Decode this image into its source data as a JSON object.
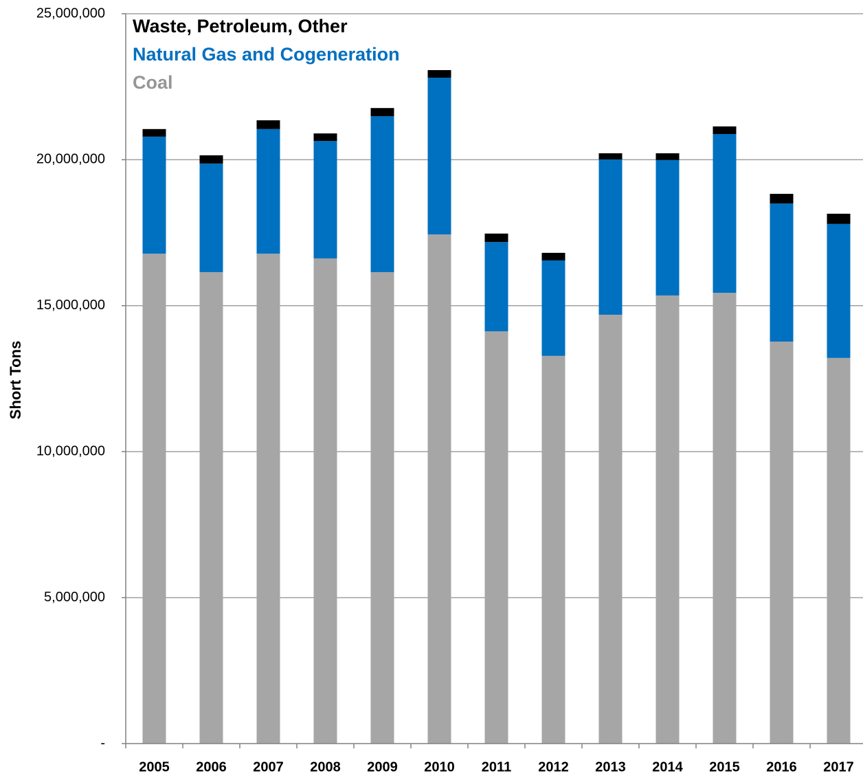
{
  "chart_data": {
    "type": "stacked_bar",
    "y_label": "Short Tons",
    "categories": [
      "2005",
      "2006",
      "2007",
      "2008",
      "2009",
      "2010",
      "2011",
      "2012",
      "2013",
      "2014",
      "2015",
      "2016",
      "2017"
    ],
    "series": [
      {
        "name": "Coal",
        "color": "#a6a6a6",
        "values": [
          16780000,
          16150000,
          16780000,
          16620000,
          16150000,
          17440000,
          14120000,
          13280000,
          14690000,
          15350000,
          15440000,
          13770000,
          13210000
        ]
      },
      {
        "name": "Natural Gas and Cogeneration",
        "color": "#0070c0",
        "values": [
          4010000,
          3720000,
          4270000,
          4020000,
          5340000,
          5370000,
          3060000,
          3270000,
          5320000,
          4640000,
          5440000,
          4730000,
          4590000
        ]
      },
      {
        "name": "Waste, Petroleum, Other",
        "color": "#000000",
        "values": [
          260000,
          280000,
          300000,
          260000,
          280000,
          260000,
          290000,
          260000,
          210000,
          230000,
          260000,
          330000,
          350000
        ]
      }
    ],
    "ylim": [
      0,
      25000000
    ],
    "yticks": [
      {
        "value": 0,
        "label": "-"
      },
      {
        "value": 5000000,
        "label": "5,000,000"
      },
      {
        "value": 10000000,
        "label": "10,000,000"
      },
      {
        "value": 15000000,
        "label": "15,000,000"
      },
      {
        "value": 20000000,
        "label": "20,000,000"
      },
      {
        "value": 25000000,
        "label": "25,000,000"
      }
    ],
    "grid": true,
    "legend": "top-left"
  }
}
